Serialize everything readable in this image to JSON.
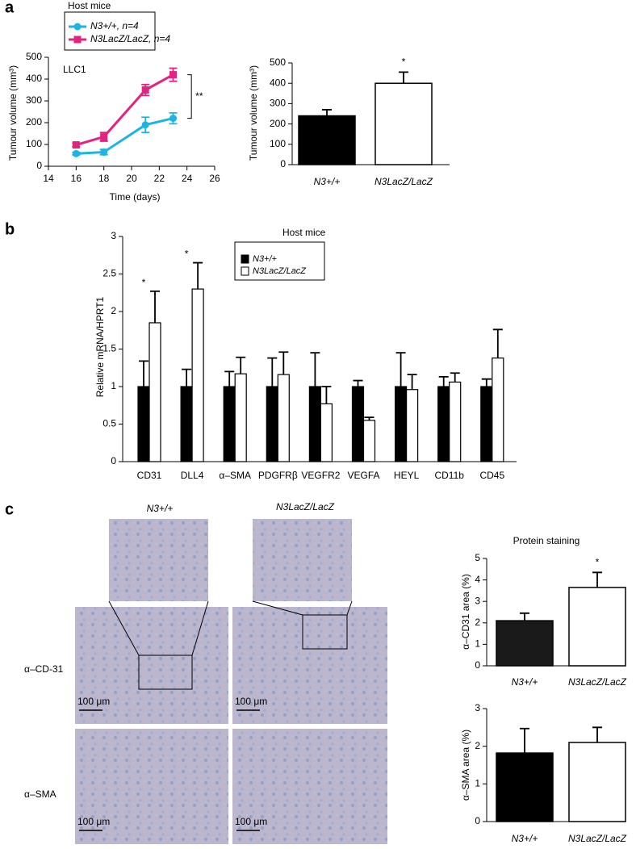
{
  "panel_labels": [
    "a",
    "b",
    "c"
  ],
  "micrographs": {
    "columns": [
      "N3+/+",
      "N3LacZ/LacZ"
    ],
    "rows": [
      "α–CD-31",
      "α–SMA"
    ],
    "scale_bar": "100 μm"
  },
  "chart_data": [
    {
      "type": "line",
      "legend_title": "Host mice",
      "label": "LLC1",
      "annotation": "**",
      "x_label": "Time (days)",
      "y_label": "Tumour volume (mm³)",
      "x": [
        16,
        18,
        21,
        23
      ],
      "xlim": [
        14,
        26
      ],
      "xticks": [
        14,
        16,
        18,
        20,
        22,
        24,
        26
      ],
      "ylim": [
        0,
        500
      ],
      "yticks": [
        0,
        100,
        200,
        300,
        400,
        500
      ],
      "series": [
        {
          "name": "N3+/+, n=4",
          "color": "#1db4e3",
          "values": [
            58,
            65,
            190,
            220
          ],
          "errors": [
            6,
            12,
            35,
            25
          ]
        },
        {
          "name": "N3LacZ/LacZ, n=4",
          "color": "#e2237f",
          "values": [
            98,
            135,
            350,
            420
          ],
          "errors": [
            8,
            20,
            25,
            30
          ]
        }
      ]
    },
    {
      "type": "bar",
      "y_label": "Tumour volume (mm³)",
      "categories": [
        "N3+/+",
        "N3LacZ/LacZ"
      ],
      "values": [
        240,
        400
      ],
      "errors": [
        30,
        55
      ],
      "colors": [
        "#000000",
        "#ffffff"
      ],
      "annotations": [
        null,
        "*"
      ],
      "ylim": [
        0,
        500
      ],
      "yticks": [
        0,
        100,
        200,
        300,
        400,
        500
      ]
    },
    {
      "type": "grouped-bar",
      "legend_title": "Host mice",
      "y_label": "Relative mRNA/HPRT1",
      "categories": [
        "CD31",
        "DLL4",
        "α–SMA",
        "PDGFRβ",
        "VEGFR2",
        "VEGFA",
        "HEYL",
        "CD11b",
        "CD45"
      ],
      "annotations": [
        "*",
        "*",
        null,
        null,
        null,
        null,
        null,
        null,
        null
      ],
      "ylim": [
        0,
        3
      ],
      "yticks": [
        0,
        0.5,
        1,
        1.5,
        2,
        2.5,
        3
      ],
      "series": [
        {
          "name": "N3+/+",
          "color": "#000000",
          "values": [
            1,
            1,
            1,
            1,
            1,
            1,
            1,
            1,
            1
          ],
          "errors": [
            0.34,
            0.23,
            0.2,
            0.38,
            0.45,
            0.08,
            0.45,
            0.13,
            0.1
          ]
        },
        {
          "name": "N3LacZ/LacZ",
          "color": "#ffffff",
          "values": [
            1.85,
            2.3,
            1.17,
            1.16,
            0.77,
            0.55,
            0.96,
            1.06,
            1.38
          ],
          "errors": [
            0.42,
            0.35,
            0.22,
            0.3,
            0.23,
            0.04,
            0.2,
            0.12,
            0.38
          ]
        }
      ]
    },
    {
      "type": "bar",
      "title": "Protein staining",
      "y_label": "α–CD31 area (%)",
      "categories": [
        "N3+/+",
        "N3LacZ/LacZ"
      ],
      "values": [
        2.1,
        3.65
      ],
      "errors": [
        0.35,
        0.7
      ],
      "colors": [
        "#1a1a1a",
        "#ffffff"
      ],
      "annotations": [
        null,
        "*"
      ],
      "ylim": [
        0,
        5
      ],
      "yticks": [
        0,
        1,
        2,
        3,
        4,
        5
      ]
    },
    {
      "type": "bar",
      "y_label": "α–SMA area (%)",
      "categories": [
        "N3+/+",
        "N3LacZ/LacZ"
      ],
      "values": [
        1.82,
        2.1
      ],
      "errors": [
        0.65,
        0.4
      ],
      "colors": [
        "#000000",
        "#ffffff"
      ],
      "annotations": [
        null,
        null
      ],
      "ylim": [
        0,
        3
      ],
      "yticks": [
        0,
        1,
        2,
        3
      ]
    }
  ]
}
